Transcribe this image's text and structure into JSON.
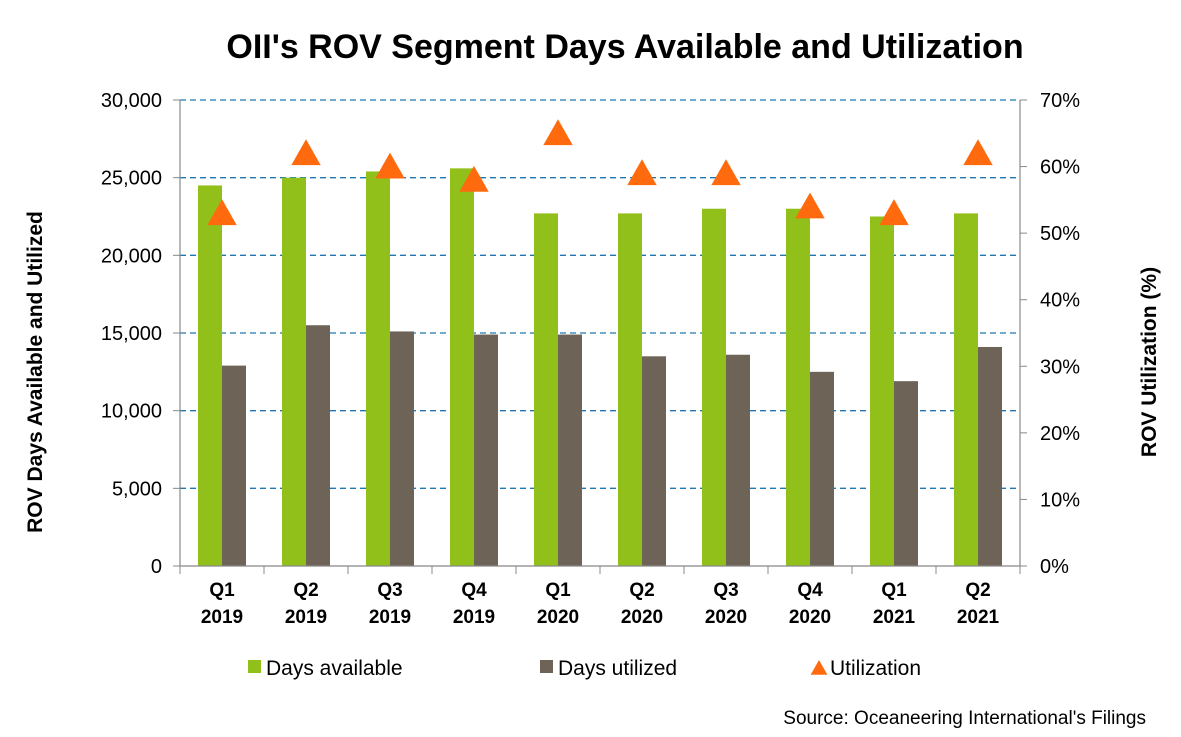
{
  "chart_data": {
    "type": "bar",
    "title": "OII's ROV Segment Days Available and Utilization",
    "categories": [
      [
        "Q1",
        "2019"
      ],
      [
        "Q2",
        "2019"
      ],
      [
        "Q3",
        "2019"
      ],
      [
        "Q4",
        "2019"
      ],
      [
        "Q1",
        "2020"
      ],
      [
        "Q2",
        "2020"
      ],
      [
        "Q3",
        "2020"
      ],
      [
        "Q4",
        "2020"
      ],
      [
        "Q1",
        "2021"
      ],
      [
        "Q2",
        "2021"
      ]
    ],
    "series": [
      {
        "name": "Days available",
        "type": "bar",
        "axis": "left",
        "color": "#92C01A",
        "values": [
          24500,
          25000,
          25400,
          25600,
          22700,
          22700,
          23000,
          23000,
          22500,
          22700
        ]
      },
      {
        "name": "Days utilized",
        "type": "bar",
        "axis": "left",
        "color": "#6D6457",
        "values": [
          12900,
          15500,
          15100,
          14900,
          14900,
          13500,
          13600,
          12500,
          11900,
          14100
        ]
      },
      {
        "name": "Utilization",
        "type": "scatter",
        "marker": "triangle",
        "axis": "right",
        "color": "#FF6A0F",
        "values": [
          53,
          62,
          60,
          58,
          65,
          59,
          59,
          54,
          53,
          62
        ]
      }
    ],
    "ylabel": "ROV Days Available and Utilized",
    "y2label": "ROV Utilization (%)",
    "ylim": [
      0,
      30000
    ],
    "y2lim": [
      0,
      70
    ],
    "yticks": [
      "0",
      "5,000",
      "10,000",
      "15,000",
      "20,000",
      "25,000",
      "30,000"
    ],
    "y2ticks": [
      "0%",
      "10%",
      "20%",
      "30%",
      "40%",
      "50%",
      "60%",
      "70%"
    ],
    "grid": true,
    "grid_color": "#1F77B4",
    "legend_position": "bottom",
    "source": "Source: Oceaneering International's  Filings"
  }
}
